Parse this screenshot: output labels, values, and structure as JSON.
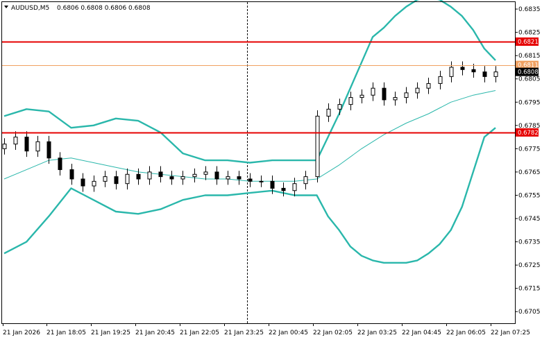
{
  "header": {
    "symbol_label": "AUDUSD,M5",
    "ohlc_label": "0.6806 0.6808 0.6806 0.6808",
    "dropdown_icon": "triangle-down-icon"
  },
  "colors": {
    "background": "#ffffff",
    "frame": "#000000",
    "candle": "#000000",
    "bollinger_bands": "#2ab7ab",
    "level_lines": "#e60000",
    "current_price_line": "#f0a060",
    "price_badge_bg": "#000000",
    "period_separator": "#000000"
  },
  "chart_data": {
    "type": "candlestick",
    "symbol": "AUDUSD",
    "timeframe": "M5",
    "grid": false,
    "y_range": [
      0.67,
      0.6838
    ],
    "y_ticks": [
      "0.6835",
      "0.6825",
      "0.6815",
      "0.6805",
      "0.6795",
      "0.6785",
      "0.6775",
      "0.6765",
      "0.6755",
      "0.6745",
      "0.6735",
      "0.6725",
      "0.6715",
      "0.6705"
    ],
    "x_ticks": [
      "21 Jan 2026",
      "21 Jan 18:05",
      "21 Jan 19:25",
      "21 Jan 20:45",
      "21 Jan 22:05",
      "21 Jan 23:25",
      "22 Jan 00:45",
      "22 Jan 02:05",
      "22 Jan 03:25",
      "22 Jan 04:45",
      "22 Jan 06:05",
      "22 Jan 07:25"
    ],
    "horizontal_levels": [
      {
        "label": "0.6821",
        "value": 0.6821,
        "role": "resistance"
      },
      {
        "label": "0.6782",
        "value": 0.6782,
        "role": "support"
      }
    ],
    "current_price": {
      "label": "0.6808",
      "value": 0.6808
    },
    "ask_price": {
      "label": "0.6811",
      "value": 0.6811
    },
    "period_separator_at": "22 Jan 00:00",
    "series": [
      {
        "type": "candles",
        "x": [
          "16:45",
          "17:05",
          "17:25",
          "17:45",
          "18:05",
          "18:25",
          "18:45",
          "19:05",
          "19:25",
          "19:45",
          "20:05",
          "20:25",
          "20:45",
          "21:05",
          "21:25",
          "21:45",
          "22:05",
          "22:25",
          "22:45",
          "23:05",
          "23:25",
          "23:45",
          "00:05",
          "00:25",
          "00:45",
          "01:05",
          "01:25",
          "01:45",
          "02:05",
          "02:25",
          "02:45",
          "03:05",
          "03:25",
          "03:45",
          "04:05",
          "04:25",
          "04:45",
          "05:05",
          "05:25",
          "05:45",
          "06:05",
          "06:25",
          "06:45",
          "07:05",
          "07:25"
        ],
        "close": [
          0.6777,
          0.678,
          0.6774,
          0.6778,
          0.6771,
          0.6766,
          0.6762,
          0.6759,
          0.6761,
          0.6763,
          0.676,
          0.6764,
          0.6762,
          0.6765,
          0.6763,
          0.6762,
          0.6763,
          0.6764,
          0.6765,
          0.6762,
          0.6763,
          0.6762,
          0.6761,
          0.6761,
          0.6758,
          0.6757,
          0.676,
          0.6763,
          0.6789,
          0.6792,
          0.6794,
          0.6797,
          0.6798,
          0.6801,
          0.6796,
          0.6797,
          0.6799,
          0.6801,
          0.6803,
          0.6806,
          0.681,
          0.6809,
          0.6808,
          0.6806,
          0.6808
        ]
      },
      {
        "type": "bollinger_upper",
        "x": [
          "16:45",
          "17:25",
          "18:05",
          "18:45",
          "19:25",
          "20:05",
          "20:45",
          "21:25",
          "22:05",
          "22:45",
          "23:25",
          "00:05",
          "00:45",
          "01:25",
          "02:05",
          "02:25",
          "02:45",
          "03:05",
          "03:25",
          "03:45",
          "04:05",
          "04:25",
          "04:45",
          "05:05",
          "05:25",
          "05:45",
          "06:05",
          "06:25",
          "06:45",
          "07:05",
          "07:25"
        ],
        "values": [
          0.6789,
          0.6792,
          0.6791,
          0.6784,
          0.6785,
          0.6788,
          0.6787,
          0.6782,
          0.6773,
          0.677,
          0.677,
          0.6769,
          0.677,
          0.677,
          0.677,
          0.678,
          0.679,
          0.6801,
          0.6812,
          0.6823,
          0.6827,
          0.6832,
          0.6836,
          0.6839,
          0.684,
          0.6839,
          0.6836,
          0.6832,
          0.6826,
          0.6818,
          0.6813
        ]
      },
      {
        "type": "bollinger_middle",
        "x": [
          "16:45",
          "17:25",
          "18:05",
          "18:45",
          "19:25",
          "20:05",
          "20:45",
          "21:25",
          "22:05",
          "22:45",
          "23:25",
          "00:05",
          "00:45",
          "01:25",
          "02:05",
          "02:45",
          "03:25",
          "04:05",
          "04:45",
          "05:25",
          "06:05",
          "06:45",
          "07:25"
        ],
        "values": [
          0.6762,
          0.6766,
          0.677,
          0.6771,
          0.6769,
          0.6767,
          0.6765,
          0.6764,
          0.6763,
          0.6762,
          0.6762,
          0.6761,
          0.6761,
          0.6761,
          0.6762,
          0.6768,
          0.6775,
          0.6781,
          0.6786,
          0.679,
          0.6795,
          0.6798,
          0.68
        ]
      },
      {
        "type": "bollinger_lower",
        "x": [
          "16:45",
          "17:25",
          "18:05",
          "18:45",
          "19:25",
          "20:05",
          "20:45",
          "21:25",
          "22:05",
          "22:45",
          "23:25",
          "00:05",
          "00:45",
          "01:25",
          "02:05",
          "02:25",
          "02:45",
          "03:05",
          "03:25",
          "03:45",
          "04:05",
          "04:25",
          "04:45",
          "05:05",
          "05:25",
          "05:45",
          "06:05",
          "06:25",
          "06:45",
          "07:05",
          "07:25"
        ],
        "values": [
          0.673,
          0.6735,
          0.6746,
          0.6758,
          0.6753,
          0.6748,
          0.6747,
          0.6749,
          0.6753,
          0.6755,
          0.6755,
          0.6756,
          0.6757,
          0.6755,
          0.6755,
          0.6746,
          0.674,
          0.6733,
          0.6729,
          0.6727,
          0.6726,
          0.6726,
          0.6726,
          0.6727,
          0.673,
          0.6734,
          0.674,
          0.675,
          0.6765,
          0.678,
          0.6784
        ]
      }
    ]
  }
}
